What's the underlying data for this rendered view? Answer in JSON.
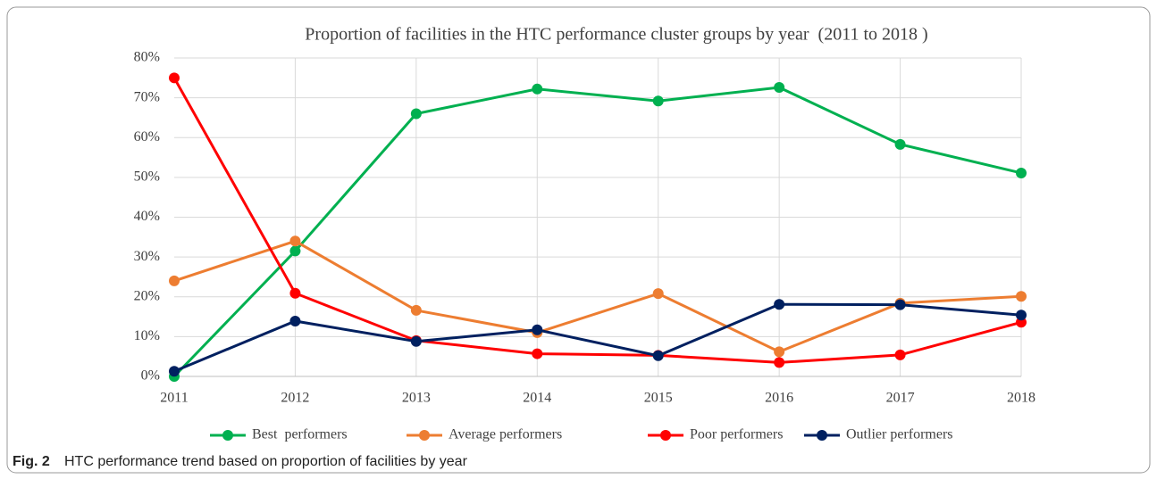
{
  "chart_data": {
    "type": "line",
    "title": "Proportion of facilities in the HTC performance cluster groups by year  (2011 to 2018 )",
    "caption_label": "Fig. 2",
    "caption": "HTC performance trend based on proportion of facilities by year",
    "categories": [
      "2011",
      "2012",
      "2013",
      "2014",
      "2015",
      "2016",
      "2017",
      "2018"
    ],
    "series": [
      {
        "name": "Best  performers",
        "color": "#00b050",
        "values": [
          0,
          31.5,
          66,
          72.2,
          69.2,
          72.6,
          58.3,
          51.1
        ]
      },
      {
        "name": "Average performers",
        "color": "#ed7d31",
        "values": [
          24,
          34,
          16.6,
          11,
          20.8,
          6.2,
          18.4,
          20.1
        ]
      },
      {
        "name": "Poor performers",
        "color": "#ff0000",
        "values": [
          75,
          20.9,
          9,
          5.7,
          5.3,
          3.5,
          5.4,
          13.6
        ]
      },
      {
        "name": "Outlier performers",
        "color": "#002060",
        "values": [
          1.3,
          13.9,
          8.8,
          11.7,
          5.2,
          18.1,
          18,
          15.4
        ]
      }
    ],
    "ylim": [
      0,
      80
    ],
    "yticks": [
      {
        "value": 0,
        "label": "0%"
      },
      {
        "value": 10,
        "label": "10%"
      },
      {
        "value": 20,
        "label": "20%"
      },
      {
        "value": 30,
        "label": "30%"
      },
      {
        "value": 40,
        "label": "40%"
      },
      {
        "value": 50,
        "label": "50%"
      },
      {
        "value": 60,
        "label": "60%"
      },
      {
        "value": 70,
        "label": "70%"
      },
      {
        "value": 80,
        "label": "80%"
      }
    ],
    "grid": true,
    "legend": "bottom"
  }
}
